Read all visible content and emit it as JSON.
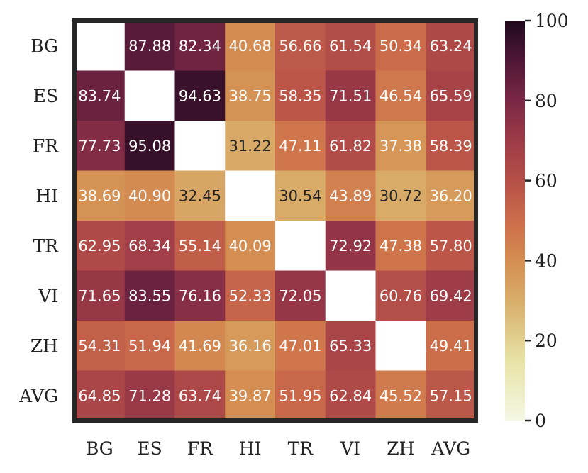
{
  "chart_data": {
    "type": "heatmap",
    "title": "",
    "xlabel": "",
    "ylabel": "",
    "rows": [
      "BG",
      "ES",
      "FR",
      "HI",
      "TR",
      "VI",
      "ZH",
      "AVG"
    ],
    "columns": [
      "BG",
      "ES",
      "FR",
      "HI",
      "TR",
      "VI",
      "ZH",
      "AVG"
    ],
    "values": [
      [
        null,
        87.88,
        82.34,
        40.68,
        56.66,
        61.54,
        50.34,
        63.24
      ],
      [
        83.74,
        null,
        94.63,
        38.75,
        58.35,
        71.51,
        46.54,
        65.59
      ],
      [
        77.73,
        95.08,
        null,
        31.22,
        47.11,
        61.82,
        37.38,
        58.39
      ],
      [
        38.69,
        40.9,
        32.45,
        null,
        30.54,
        43.89,
        30.72,
        36.2
      ],
      [
        62.95,
        68.34,
        55.14,
        40.09,
        null,
        72.92,
        47.38,
        57.8
      ],
      [
        71.65,
        83.55,
        76.16,
        52.33,
        72.05,
        null,
        60.76,
        69.42
      ],
      [
        54.31,
        51.94,
        41.69,
        36.16,
        47.01,
        65.33,
        null,
        49.41
      ],
      [
        64.85,
        71.28,
        63.74,
        39.87,
        51.95,
        62.84,
        45.52,
        57.15
      ]
    ],
    "value_labels": [
      [
        "",
        "87.88",
        "82.34",
        "40.68",
        "56.66",
        "61.54",
        "50.34",
        "63.24"
      ],
      [
        "83.74",
        "",
        "94.63",
        "38.75",
        "58.35",
        "71.51",
        "46.54",
        "65.59"
      ],
      [
        "77.73",
        "95.08",
        "",
        "31.22",
        "47.11",
        "61.82",
        "37.38",
        "58.39"
      ],
      [
        "38.69",
        "40.90",
        "32.45",
        "",
        "30.54",
        "43.89",
        "30.72",
        "36.20"
      ],
      [
        "62.95",
        "68.34",
        "55.14",
        "40.09",
        "",
        "72.92",
        "47.38",
        "57.80"
      ],
      [
        "71.65",
        "83.55",
        "76.16",
        "52.33",
        "72.05",
        "",
        "60.76",
        "69.42"
      ],
      [
        "54.31",
        "51.94",
        "41.69",
        "36.16",
        "47.01",
        "65.33",
        "",
        "49.41"
      ],
      [
        "64.85",
        "71.28",
        "63.74",
        "39.87",
        "51.95",
        "62.84",
        "45.52",
        "57.15"
      ]
    ],
    "colorbar": {
      "min": 0,
      "max": 100,
      "ticks": [
        0,
        20,
        40,
        60,
        80,
        100
      ],
      "tick_labels": [
        "0",
        "20",
        "40",
        "60",
        "80",
        "100"
      ]
    },
    "colormap_stops": [
      {
        "v": 0,
        "color": "#f4f8e4"
      },
      {
        "v": 15,
        "color": "#e8e3a6"
      },
      {
        "v": 30,
        "color": "#d8ad6a"
      },
      {
        "v": 40,
        "color": "#d58e52"
      },
      {
        "v": 50,
        "color": "#cc6c4a"
      },
      {
        "v": 60,
        "color": "#b65048"
      },
      {
        "v": 70,
        "color": "#9d3b47"
      },
      {
        "v": 80,
        "color": "#7a2845"
      },
      {
        "v": 90,
        "color": "#4f1736"
      },
      {
        "v": 100,
        "color": "#1f0a1c"
      }
    ],
    "dark_text_below": 34,
    "grid": false,
    "legend": "colorbar-right"
  }
}
